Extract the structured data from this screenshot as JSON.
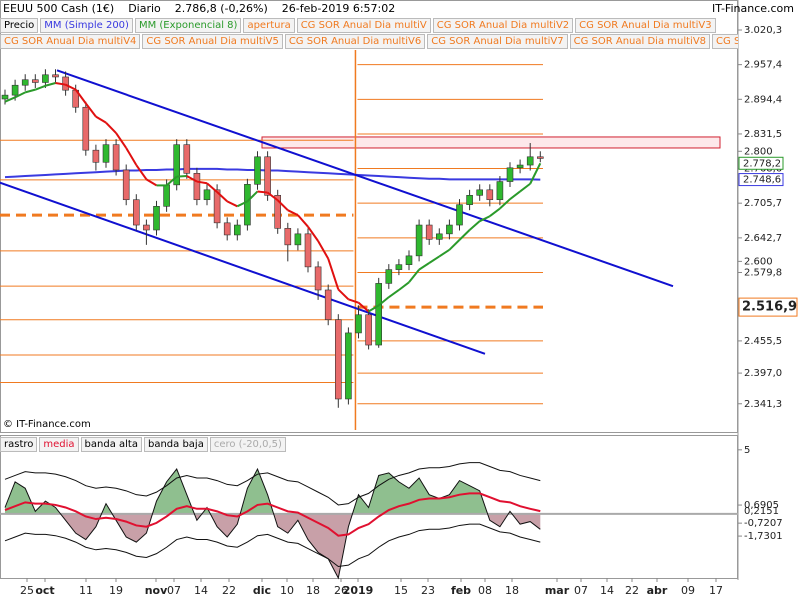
{
  "chart_data": [
    {
      "type": "candlestick",
      "title": "EEUU 500 Cash (1€)",
      "period": "Diario",
      "last": "2.786,8 (-0,26%)",
      "datetime": "26-feb-2019 6:57:02",
      "brand": "IT-Finance.com",
      "copyright": "© IT-Finance.com",
      "candles": {
        "name": "Precio",
        "up_color": "#2fb82f",
        "down_color": "#e86a6a",
        "open": [
          2895,
          2902,
          2920,
          2930,
          2925,
          2939,
          2935,
          2911,
          2880,
          2802,
          2780,
          2812,
          2766,
          2712,
          2666,
          2657,
          2700,
          2739,
          2812,
          2760,
          2712,
          2730,
          2670,
          2648,
          2666,
          2740,
          2790,
          2720,
          2660,
          2630,
          2650,
          2590,
          2548,
          2494,
          2350,
          2470,
          2503,
          2448,
          2560,
          2585,
          2594,
          2610,
          2666,
          2640,
          2650,
          2666,
          2703,
          2720,
          2730,
          2712,
          2745,
          2770,
          2775,
          2790
        ],
        "high": [
          2912,
          2930,
          2940,
          2940,
          2949,
          2949,
          2945,
          2921,
          2890,
          2812,
          2822,
          2822,
          2776,
          2722,
          2676,
          2710,
          2749,
          2822,
          2822,
          2770,
          2740,
          2740,
          2680,
          2676,
          2750,
          2800,
          2800,
          2730,
          2670,
          2660,
          2660,
          2600,
          2558,
          2504,
          2480,
          2520,
          2513,
          2570,
          2595,
          2604,
          2620,
          2676,
          2676,
          2660,
          2676,
          2713,
          2730,
          2740,
          2740,
          2755,
          2780,
          2785,
          2815,
          2800
        ],
        "low": [
          2885,
          2892,
          2910,
          2915,
          2915,
          2925,
          2901,
          2870,
          2792,
          2765,
          2770,
          2756,
          2702,
          2656,
          2630,
          2647,
          2690,
          2729,
          2750,
          2702,
          2702,
          2660,
          2638,
          2638,
          2656,
          2730,
          2710,
          2650,
          2600,
          2620,
          2580,
          2530,
          2484,
          2334,
          2340,
          2460,
          2440,
          2443,
          2550,
          2575,
          2584,
          2600,
          2630,
          2630,
          2640,
          2656,
          2693,
          2710,
          2700,
          2702,
          2735,
          2760,
          2765,
          2780
        ],
        "close": [
          2902,
          2920,
          2930,
          2925,
          2939,
          2935,
          2911,
          2880,
          2802,
          2780,
          2812,
          2766,
          2712,
          2666,
          2657,
          2700,
          2739,
          2812,
          2760,
          2712,
          2730,
          2670,
          2648,
          2666,
          2740,
          2790,
          2720,
          2660,
          2630,
          2650,
          2590,
          2548,
          2494,
          2350,
          2470,
          2503,
          2448,
          2560,
          2585,
          2594,
          2610,
          2666,
          2640,
          2650,
          2666,
          2703,
          2720,
          2730,
          2712,
          2745,
          2770,
          2775,
          2790,
          2787
        ]
      },
      "series": [
        {
          "name": "MM (Simple 200)",
          "color": "#3a3ae0",
          "values": [
            2753,
            2754,
            2755,
            2756,
            2757,
            2758,
            2759,
            2760,
            2761,
            2762,
            2763,
            2764,
            2765,
            2765,
            2766,
            2766,
            2767,
            2767,
            2768,
            2768,
            2768,
            2768,
            2767,
            2767,
            2766,
            2766,
            2765,
            2765,
            2764,
            2763,
            2762,
            2761,
            2760,
            2759,
            2758,
            2757,
            2756,
            2755,
            2754,
            2753,
            2752,
            2751,
            2750,
            2750,
            2749,
            2749,
            2749,
            2749,
            2749,
            2749,
            2749,
            2749,
            2749,
            2748.6
          ]
        },
        {
          "name": "MM (Exponencial 8)",
          "color": "#2a9a2a",
          "down_color": "#e01010",
          "values": [
            2890,
            2898,
            2907,
            2912,
            2919,
            2924,
            2921,
            2912,
            2887,
            2863,
            2852,
            2833,
            2806,
            2775,
            2749,
            2738,
            2738,
            2754,
            2755,
            2745,
            2742,
            2726,
            2709,
            2700,
            2709,
            2727,
            2725,
            2711,
            2693,
            2684,
            2663,
            2637,
            2605,
            2549,
            2531,
            2525,
            2509,
            2520,
            2535,
            2548,
            2562,
            2585,
            2597,
            2609,
            2621,
            2639,
            2657,
            2673,
            2682,
            2696,
            2713,
            2727,
            2741,
            2778.2
          ]
        }
      ],
      "overlay_legend": [
        "apertura",
        "CG SOR Anual Dia multiV",
        "CG SOR Anual Dia multiV2",
        "CG SOR Anual Dia multiV3",
        "CG SOR Anual Dia multiV4",
        "CG SOR Anual Dia multiV5",
        "CG SOR Anual Dia multiV6",
        "CG SOR Anual Dia multiV7",
        "CG SOR Anual Dia multiV8",
        "CG SOR Anual"
      ],
      "level_color": "#f07a20",
      "levels_2018": [
        2820,
        2748,
        2619,
        2555,
        2494,
        2430,
        2380
      ],
      "pivot_2018": 2684,
      "levels_2019": [
        2957.4,
        2894.4,
        2831.5,
        2768.6,
        2705.7,
        2642.7,
        2579.8,
        2455.5,
        2397.0,
        2341.3
      ],
      "pivot_2019": {
        "value": 2516.9,
        "label": "2.516,9"
      },
      "trendlines": [
        {
          "start": 2947,
          "end": 2555
        },
        {
          "start": 2743,
          "end": 2432
        }
      ],
      "trend_color": "#1010d0",
      "zone": [
        2806,
        2826
      ],
      "ylim": [
        2290,
        3038.5
      ],
      "yticks": [
        {
          "value": 3020.3,
          "label": "3.020,3"
        },
        {
          "value": 2957.4,
          "label": "2.957,4"
        },
        {
          "value": 2894.4,
          "label": "2.894,4"
        },
        {
          "value": 2831.5,
          "label": "2.831,5"
        },
        {
          "value": 2800,
          "label": "2.800"
        },
        {
          "value": 2768.6,
          "label": "2.768,6"
        },
        {
          "value": 2705.7,
          "label": "2.705,7"
        },
        {
          "value": 2642.7,
          "label": "2.642,7"
        },
        {
          "value": 2600,
          "label": "2.600"
        },
        {
          "value": 2579.8,
          "label": "2.579,8"
        },
        {
          "value": 2455.5,
          "label": "2.455,5"
        },
        {
          "value": 2397.0,
          "label": "2.397,0"
        },
        {
          "value": 2341.3,
          "label": "2.341,3"
        }
      ],
      "last_labels": [
        {
          "value": 2778.2,
          "label": "2.778,2",
          "color": "#2a9a2a"
        },
        {
          "value": 2748.6,
          "label": "2.748,6",
          "color": "#3a3ae0"
        }
      ],
      "x_labels": [
        "25",
        "oct",
        "11",
        "19",
        "nov",
        "07",
        "14",
        "22",
        "dic",
        "10",
        "18",
        "26",
        "2019",
        "15",
        "23",
        "feb",
        "08",
        "18",
        "mar",
        "07",
        "14",
        "22",
        "abr",
        "09",
        "17"
      ]
    },
    {
      "type": "line",
      "series": [
        {
          "name": "rastro",
          "color": "#111111",
          "values": [
            0.5,
            2.5,
            2.0,
            0.2,
            1.0,
            0.5,
            -0.5,
            -1.5,
            -2.0,
            -1.0,
            0.8,
            -0.5,
            -1.8,
            -2.2,
            -1.5,
            1.0,
            2.5,
            3.5,
            1.5,
            -0.5,
            0.5,
            -1.0,
            -1.8,
            -0.8,
            2.0,
            3.5,
            1.5,
            -1.0,
            -1.5,
            -0.5,
            -2.0,
            -3.0,
            -3.5,
            -5.0,
            -1.0,
            1.5,
            0.5,
            3.0,
            3.2,
            2.5,
            2.0,
            2.8,
            1.5,
            1.2,
            1.5,
            2.6,
            2.2,
            1.8,
            -0.5,
            -1.0,
            0.2,
            -0.8,
            -0.6,
            -1.2
          ]
        },
        {
          "name": "media",
          "color": "#e01030",
          "values": [
            0.3,
            0.6,
            0.9,
            0.8,
            0.8,
            0.7,
            0.5,
            0.2,
            -0.2,
            -0.4,
            -0.3,
            -0.4,
            -0.6,
            -0.9,
            -1.0,
            -0.7,
            -0.2,
            0.4,
            0.6,
            0.4,
            0.4,
            0.2,
            -0.1,
            -0.2,
            0.2,
            0.7,
            0.8,
            0.5,
            0.2,
            0.1,
            -0.3,
            -0.7,
            -1.1,
            -1.7,
            -1.6,
            -1.1,
            -0.8,
            -0.2,
            0.3,
            0.6,
            0.8,
            1.1,
            1.2,
            1.2,
            1.3,
            1.5,
            1.6,
            1.6,
            1.3,
            1.0,
            0.9,
            0.6,
            0.4,
            0.2151
          ]
        },
        {
          "name": "banda alta",
          "color": "#111111",
          "values": [
            2.7,
            3.0,
            3.3,
            3.2,
            3.2,
            3.1,
            2.9,
            2.6,
            2.2,
            2.0,
            2.1,
            2.0,
            1.8,
            1.5,
            1.4,
            1.7,
            2.2,
            2.8,
            3.0,
            2.8,
            2.8,
            2.6,
            2.3,
            2.2,
            2.6,
            3.1,
            3.2,
            2.9,
            2.6,
            2.5,
            2.1,
            1.7,
            1.3,
            0.7,
            0.8,
            1.3,
            1.6,
            2.2,
            2.7,
            3.0,
            3.2,
            3.5,
            3.6,
            3.6,
            3.7,
            3.9,
            4.0,
            4.0,
            3.7,
            3.4,
            3.3,
            3.0,
            2.8,
            2.6
          ]
        },
        {
          "name": "banda baja",
          "color": "#111111",
          "values": [
            -2.1,
            -1.8,
            -1.5,
            -1.6,
            -1.6,
            -1.7,
            -1.9,
            -2.2,
            -2.6,
            -2.8,
            -2.7,
            -2.8,
            -3.0,
            -3.3,
            -3.4,
            -3.1,
            -2.6,
            -2.0,
            -1.8,
            -2.0,
            -2.0,
            -2.2,
            -2.5,
            -2.6,
            -2.2,
            -1.7,
            -1.6,
            -1.9,
            -2.2,
            -2.3,
            -2.7,
            -3.1,
            -3.5,
            -4.1,
            -4.0,
            -3.5,
            -3.2,
            -2.6,
            -2.1,
            -1.8,
            -1.6,
            -1.3,
            -1.2,
            -1.2,
            -1.1,
            -0.9,
            -0.8,
            -0.8,
            -1.1,
            -1.4,
            -1.5,
            -1.8,
            -2.0,
            -2.2
          ]
        }
      ],
      "zero_line": {
        "name": "cero (-20,0,5)",
        "value": 0
      },
      "fill_up": "#8fbf8f",
      "fill_down": "#c8a0a8",
      "ylim": [
        -5,
        6
      ],
      "yticks": [
        {
          "value": 5,
          "label": "5"
        },
        {
          "value": 0.6905,
          "label": "0,6905"
        },
        {
          "value": -0.7207,
          "label": "-0,7207"
        },
        {
          "value": -1.7301,
          "label": "-1,7301"
        }
      ],
      "last_labels": [
        {
          "value": 0.2151,
          "label": "0,2151",
          "color": "#e01030"
        }
      ]
    }
  ]
}
